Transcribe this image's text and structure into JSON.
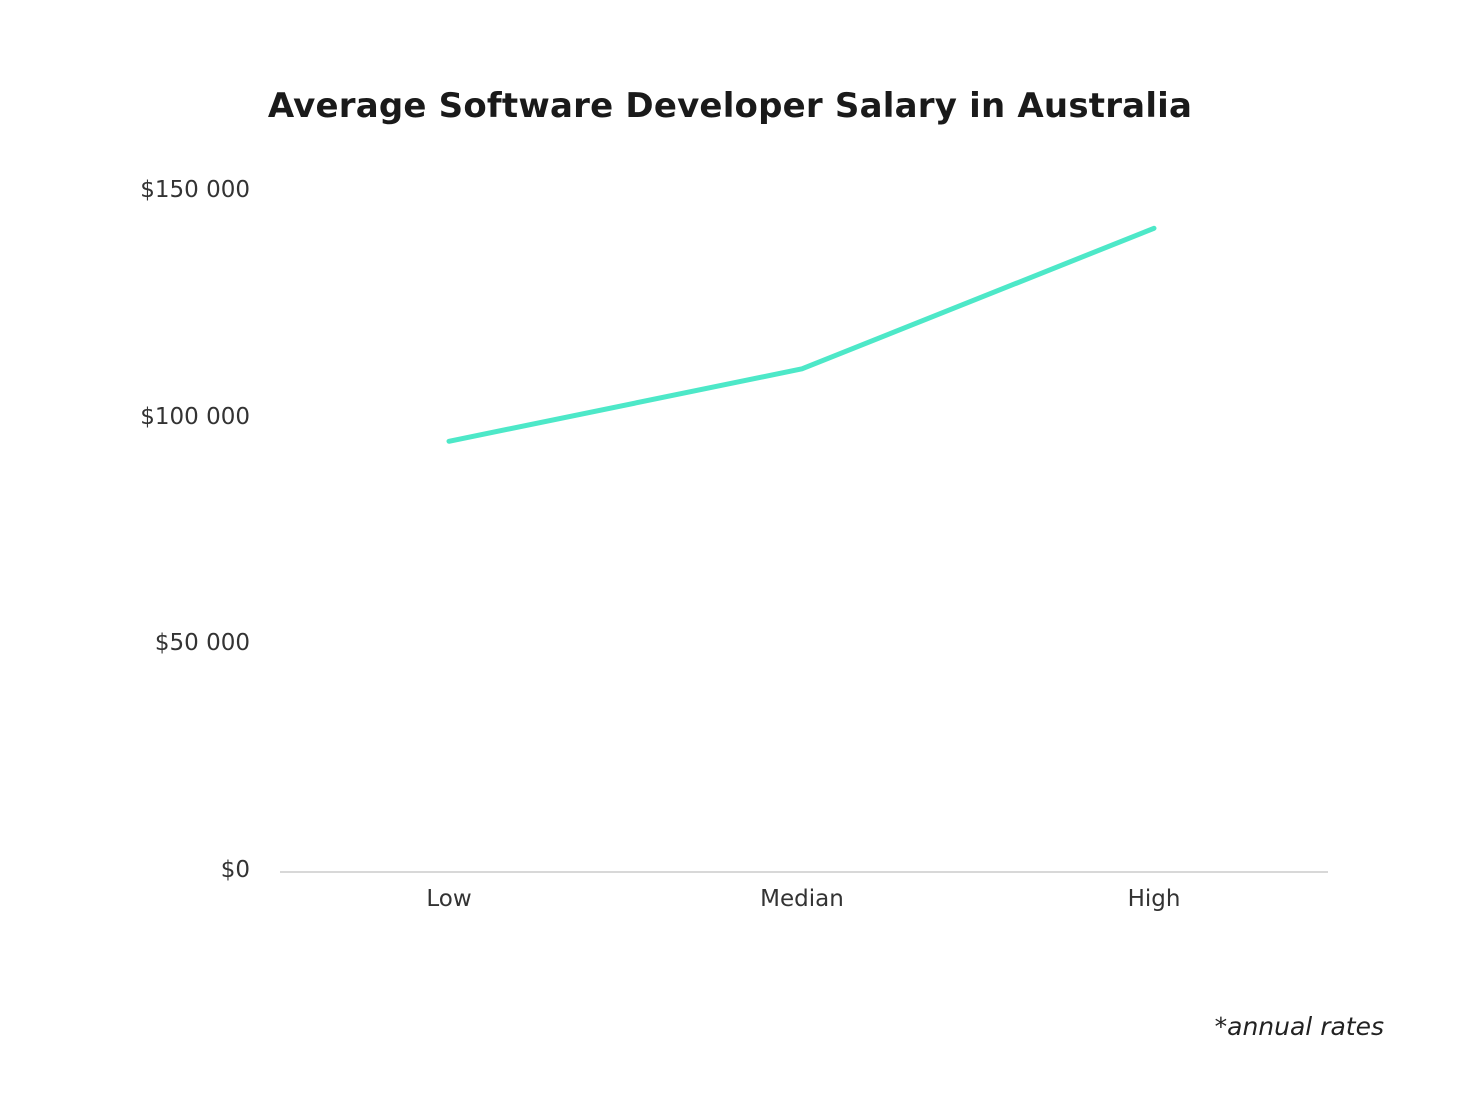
{
  "chart_data": {
    "type": "line",
    "title": "Average Software Developer Salary in Australia",
    "categories": [
      "Low",
      "Median",
      "High"
    ],
    "series": [
      {
        "name": "Salary",
        "values": [
          95000,
          111000,
          142000
        ],
        "color": "#4de8c8"
      }
    ],
    "xlabel": "",
    "ylabel": "",
    "ylim": [
      0,
      150000
    ],
    "yticks": [
      0,
      50000,
      100000,
      150000
    ],
    "ytick_labels": [
      "$0",
      "$50 000",
      "$100 000",
      "$150 000"
    ],
    "grid": false,
    "legend": "none",
    "annotations": [
      "*annual rates"
    ]
  },
  "title": "Average Software Developer Salary in Australia",
  "y_axis": {
    "labels": [
      "$150 000",
      "$100 000",
      "$50 000",
      "$0"
    ]
  },
  "x_axis": {
    "labels": [
      "Low",
      "Median",
      "High"
    ]
  },
  "footnote": "*annual rates"
}
